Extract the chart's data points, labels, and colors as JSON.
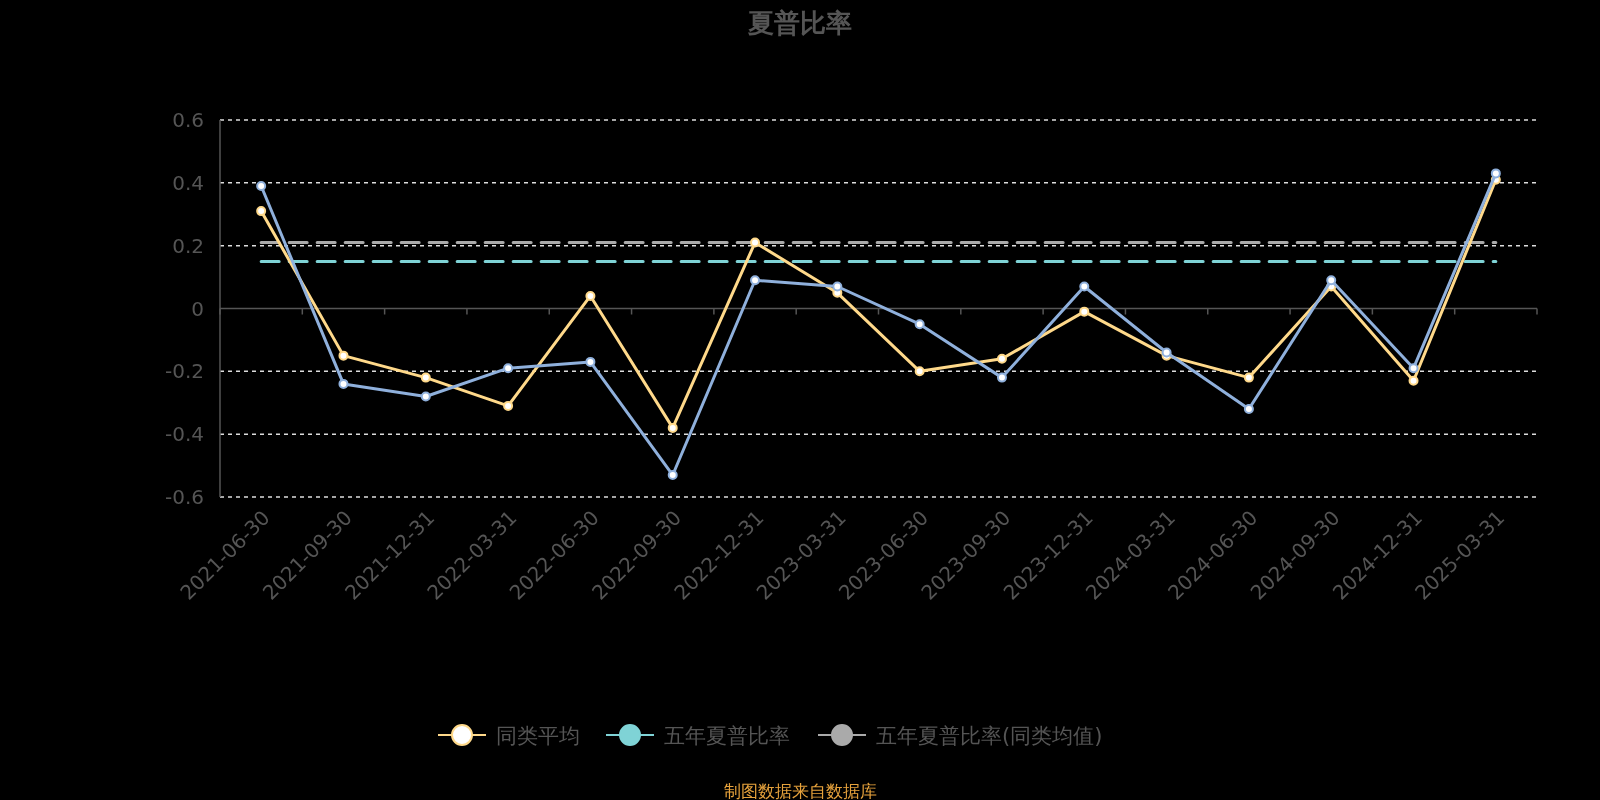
{
  "chart_data": {
    "type": "line",
    "title": "夏普比率",
    "categories": [
      "2021-06-30",
      "2021-09-30",
      "2021-12-31",
      "2022-03-31",
      "2022-06-30",
      "2022-09-30",
      "2022-12-31",
      "2023-03-31",
      "2023-06-30",
      "2023-09-30",
      "2023-12-31",
      "2024-03-31",
      "2024-06-30",
      "2024-09-30",
      "2024-12-31",
      "2025-03-31"
    ],
    "series": [
      {
        "color": "#8fb0dc",
        "marker": "circle",
        "values": [
          0.39,
          -0.24,
          -0.28,
          -0.19,
          -0.17,
          -0.53,
          0.09,
          0.07,
          -0.05,
          -0.22,
          0.07,
          -0.14,
          -0.32,
          0.09,
          -0.19,
          0.43
        ]
      },
      {
        "name": "同类平均",
        "color": "#ffd98a",
        "marker": "circle",
        "values": [
          0.31,
          -0.15,
          -0.22,
          -0.31,
          0.04,
          -0.38,
          0.21,
          0.05,
          -0.2,
          -0.16,
          -0.01,
          -0.15,
          -0.22,
          0.07,
          -0.23,
          0.41
        ]
      },
      {
        "name": "五年夏普比率",
        "color": "#7fd3d6",
        "marker": "none",
        "line_style": "dashed",
        "values": [
          0.15,
          0.15,
          0.15,
          0.15,
          0.15,
          0.15,
          0.15,
          0.15,
          0.15,
          0.15,
          0.15,
          0.15,
          0.15,
          0.15,
          0.15,
          0.15
        ]
      },
      {
        "name": "五年夏普比率(同类均值)",
        "color": "#aaaaaa",
        "marker": "none",
        "line_style": "dashed",
        "values": [
          0.21,
          0.21,
          0.21,
          0.21,
          0.21,
          0.21,
          0.21,
          0.21,
          0.21,
          0.21,
          0.21,
          0.21,
          0.21,
          0.21,
          0.21,
          0.21
        ]
      }
    ],
    "ylim": [
      -0.6,
      0.6
    ],
    "yticks": [
      -0.6,
      -0.4,
      -0.2,
      0,
      0.2,
      0.4,
      0.6
    ],
    "grid": "y",
    "legend": "bottom",
    "annotations": [
      "制图数据来自数据库"
    ]
  }
}
